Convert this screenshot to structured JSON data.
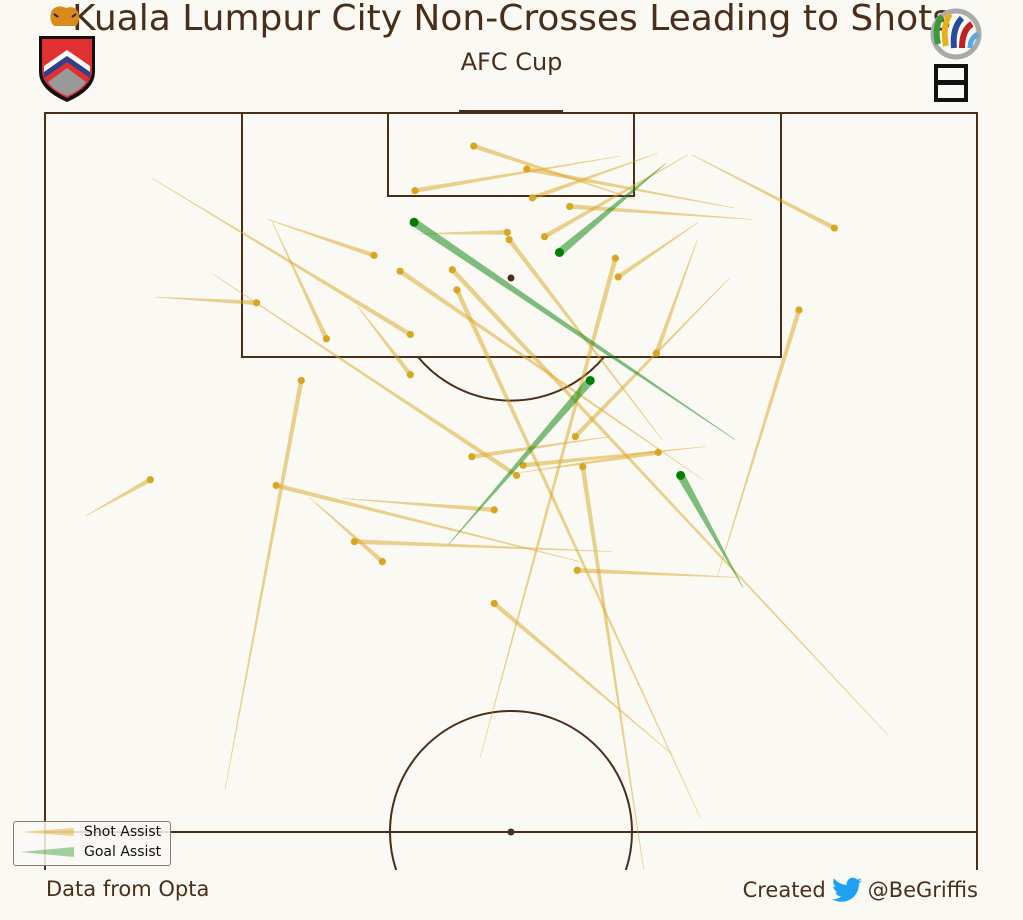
{
  "header": {
    "title": "Kuala Lumpur City Non-Crosses Leading to Shots",
    "subtitle": "AFC Cup"
  },
  "logos": {
    "left_text": "KUALA LUMPUR CITY",
    "right_text": "AFC CUP"
  },
  "footer": {
    "source": "Data from Opta",
    "credit_prefix": "Created",
    "credit_handle": "@BeGriffis",
    "credit_icon": "twitter-bird-icon"
  },
  "legend": {
    "shot": "Shot Assist",
    "goal": "Goal Assist"
  },
  "colors": {
    "background": "#faf9f4",
    "lines": "#4a2e1a",
    "shot_assist": "#daa520",
    "goal_assist": "#008000",
    "twitter": "#1da1f2"
  },
  "chart_data": {
    "type": "pass-map",
    "fields": [
      "x_start",
      "y_start",
      "x_end",
      "y_end",
      "type"
    ],
    "passes": [
      [
        93.4,
        73.9,
        96.1,
        51.7,
        "shot"
      ],
      [
        92.6,
        75.9,
        93.5,
        56.3,
        "shot"
      ],
      [
        94.0,
        63.3,
        97.7,
        46.0,
        "shot"
      ],
      [
        97.0,
        61.7,
        94.6,
        39.7,
        "shot"
      ],
      [
        97.2,
        65.7,
        94.1,
        52.3,
        "shot"
      ],
      [
        97.1,
        69.0,
        91.4,
        53.6,
        "shot"
      ],
      [
        97.1,
        69.4,
        92.0,
        84.7,
        "shot"
      ],
      [
        96.5,
        66.6,
        90.3,
        55.2,
        "goal"
      ],
      [
        92.4,
        70.1,
        88.6,
        61.5,
        "shot"
      ],
      [
        55.2,
        46.7,
        89.9,
        61.2,
        "shot"
      ],
      [
        91.2,
        70.0,
        83.3,
        65.6,
        "shot"
      ],
      [
        88.5,
        73.4,
        77.5,
        56.9,
        "shot"
      ],
      [
        67.7,
        72.1,
        86.3,
        80.9,
        "shot"
      ],
      [
        87.2,
        11.8,
        86.8,
        22.7,
        "shot"
      ],
      [
        92.4,
        24.4,
        84.3,
        30.2,
        "shot"
      ],
      [
        92.6,
        23.9,
        90.1,
        35.3,
        "shot"
      ],
      [
        95.5,
        11.4,
        84.6,
        39.2,
        "shot"
      ],
      [
        86.6,
        33.5,
        81.8,
        39.2,
        "shot"
      ],
      [
        77.3,
        74.0,
        92.4,
        39.6,
        "goal"
      ],
      [
        91.6,
        40.2,
        91.7,
        49.6,
        "shot"
      ],
      [
        88.8,
        18.0,
        74.8,
        50.6,
        "shot"
      ],
      [
        74.5,
        70.6,
        89.0,
        38.1,
        "shot"
      ],
      [
        56.7,
        90.5,
        89.1,
        43.7,
        "shot"
      ],
      [
        51.0,
        70.3,
        87.7,
        44.2,
        "shot"
      ],
      [
        77.3,
        66.2,
        91.2,
        49.8,
        "shot"
      ],
      [
        70.0,
        43.3,
        81.4,
        58.5,
        "goal"
      ],
      [
        67.0,
        74.9,
        74.8,
        68.2,
        "goal"
      ],
      [
        77.5,
        60.6,
        76.1,
        45.8,
        "shot"
      ],
      [
        76.8,
        70.9,
        75.5,
        51.3,
        "shot"
      ],
      [
        75.0,
        51.0,
        76.4,
        65.8,
        "shot"
      ],
      [
        46.7,
        64.4,
        75.4,
        57.7,
        "shot"
      ],
      [
        73.2,
        31.9,
        72.4,
        48.2,
        "shot"
      ],
      [
        68.8,
        57.4,
        74.1,
        24.8,
        "shot"
      ],
      [
        52.9,
        19.3,
        81.4,
        27.5,
        "shot"
      ],
      [
        72.0,
        4.4,
        74.5,
        11.3,
        "shot"
      ],
      [
        69.5,
        60.8,
        70.2,
        33.2,
        "shot"
      ],
      [
        73.3,
        28.3,
        68.8,
        36.2,
        "shot"
      ],
      [
        67.7,
        74.4,
        68.2,
        57.1,
        "shot"
      ],
      [
        55.4,
        67.3,
        65.9,
        48.2,
        "shot"
      ]
    ]
  }
}
